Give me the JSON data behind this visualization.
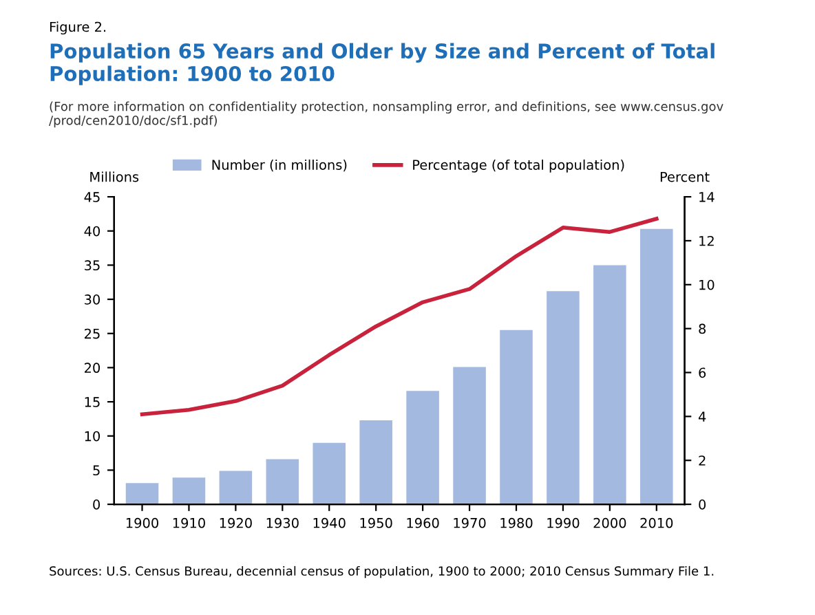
{
  "chart_data": {
    "type": "bar",
    "title": "Population 65 Years and Older by Size and Percent of Total Population: 1900 to 2010",
    "subtitle": "(For more information on confidentiality protection, nonsampling error, and definitions, see www.census.gov /prod/cen2010/doc/sf1.pdf)",
    "annotations": [
      "Figure 2.",
      "Sources: U.S. Census Bureau, decennial census of population, 1900 to 2000; 2010 Census Summary File 1."
    ],
    "ylabel": "Millions",
    "y2label": "Percent",
    "categories": [
      "1900",
      "1910",
      "1920",
      "1930",
      "1940",
      "1950",
      "1960",
      "1970",
      "1980",
      "1990",
      "2000",
      "2010"
    ],
    "series": [
      {
        "name": "Number (in millions)",
        "color": "#a3b9e0",
        "values": [
          3.1,
          3.9,
          4.9,
          6.6,
          9.0,
          12.3,
          16.6,
          20.1,
          25.5,
          31.2,
          35.0,
          40.3
        ]
      },
      {
        "name": "Percentage (of total population)",
        "type": "line",
        "axis": "y2",
        "color": "#c8223c",
        "values": [
          4.1,
          4.3,
          4.7,
          5.4,
          6.8,
          8.1,
          9.2,
          9.8,
          11.3,
          12.6,
          12.4,
          13.0
        ]
      }
    ],
    "ylim": [
      0,
      45
    ],
    "yticks": [
      0,
      5,
      10,
      15,
      20,
      25,
      30,
      35,
      40,
      45
    ],
    "y2lim": [
      0,
      14
    ],
    "y2ticks": [
      0,
      2,
      4,
      6,
      8,
      10,
      12,
      14
    ],
    "legend": "top",
    "grid": false,
    "marker": "none",
    "line_style": "solid"
  }
}
